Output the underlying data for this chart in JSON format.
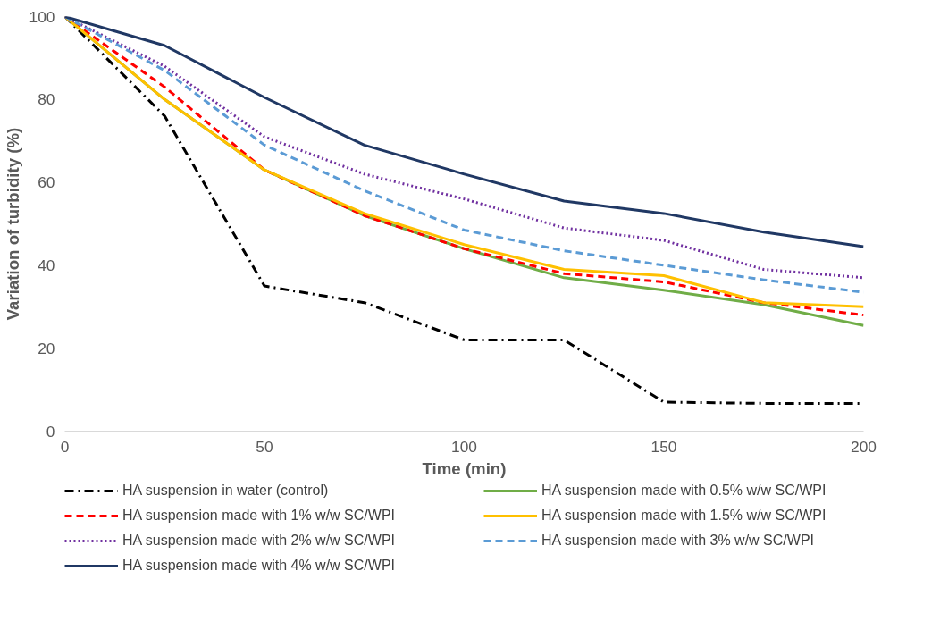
{
  "chart_data": {
    "type": "line",
    "xlabel": "Time (min)",
    "ylabel": "Variation of turbidity (%)",
    "x": [
      0,
      25,
      50,
      75,
      100,
      125,
      150,
      175,
      200
    ],
    "xlim": [
      0,
      200
    ],
    "xticks": [
      0,
      50,
      100,
      150,
      200
    ],
    "ylim": [
      0,
      100
    ],
    "yticks": [
      0,
      20,
      40,
      60,
      80,
      100
    ],
    "grid": false,
    "legend": "bottom",
    "marker": "none",
    "series": [
      {
        "name": "HA suspension in water (control)",
        "color": "#000000",
        "line_style": "dashdot",
        "values": [
          100,
          76,
          35,
          31,
          22,
          22,
          7,
          6.7,
          6.7
        ]
      },
      {
        "name": "HA suspension made with 0.5% w/w SC/WPI",
        "color": "#70ad47",
        "line_style": "solid",
        "values": [
          100,
          80,
          63,
          52,
          44,
          37,
          34,
          30.5,
          25.5
        ]
      },
      {
        "name": "HA suspension made with 1% w/w SC/WPI",
        "color": "#ff0000",
        "line_style": "dashed",
        "values": [
          100,
          83,
          63,
          52,
          44,
          38,
          36,
          31,
          28
        ]
      },
      {
        "name": "HA suspension made with 1.5% w/w SC/WPI",
        "color": "#ffc000",
        "line_style": "solid",
        "values": [
          100,
          80,
          63,
          52.5,
          45,
          39,
          37.5,
          31,
          30
        ]
      },
      {
        "name": "HA suspension made with 2% w/w SC/WPI",
        "color": "#7030a0",
        "line_style": "dotted",
        "values": [
          100,
          88,
          71,
          62,
          56,
          49,
          46,
          39,
          37
        ]
      },
      {
        "name": "HA suspension made with 3% w/w SC/WPI",
        "color": "#5b9bd5",
        "line_style": "dashed",
        "values": [
          100,
          87,
          69,
          58,
          48.5,
          43.5,
          40,
          36.5,
          33.5
        ]
      },
      {
        "name": "HA suspension made with 4% w/w SC/WPI",
        "color": "#203864",
        "line_style": "solid",
        "values": [
          100,
          93,
          80.5,
          69,
          62,
          55.5,
          52.5,
          48,
          44.5
        ]
      }
    ]
  }
}
